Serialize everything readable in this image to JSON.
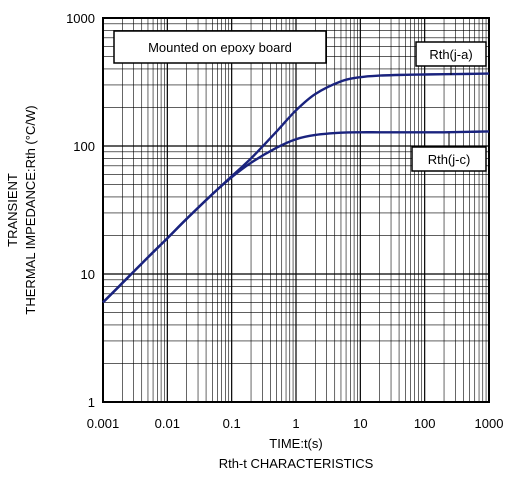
{
  "chart_data": {
    "type": "line",
    "x_scale": "log",
    "y_scale": "log",
    "xlim": [
      0.001,
      1000
    ],
    "ylim": [
      1,
      1000
    ],
    "grid": true,
    "x_ticks": [
      0.001,
      0.01,
      0.1,
      1,
      10,
      100,
      1000
    ],
    "x_tick_labels": [
      "0.001",
      "0.01",
      "0.1",
      "1",
      "10",
      "100",
      "1000"
    ],
    "y_ticks": [
      1,
      10,
      100,
      1000
    ],
    "y_tick_labels": [
      "1",
      "10",
      "100",
      "1000"
    ],
    "ylabel_line1": "TRANSIENT",
    "ylabel_line2": "THERMAL IMPEDANCE:Rth (°C/W)",
    "xlabel": "TIME:t(s)",
    "caption": "Rth-t CHARACTERISTICS",
    "condition_note": "Mounted on epoxy board",
    "series": [
      {
        "name": "Rth(j-a)",
        "color": "#1a237e",
        "x": [
          0.001,
          0.002,
          0.005,
          0.01,
          0.02,
          0.05,
          0.1,
          0.2,
          0.5,
          1,
          2,
          5,
          10,
          20,
          50,
          100,
          200,
          500,
          1000
        ],
        "y": [
          6,
          8.5,
          13.5,
          19,
          27,
          42,
          58,
          80,
          130,
          190,
          255,
          320,
          345,
          355,
          360,
          362,
          364,
          366,
          368
        ]
      },
      {
        "name": "Rth(j-c)",
        "color": "#1a237e",
        "x": [
          0.001,
          0.002,
          0.005,
          0.01,
          0.02,
          0.05,
          0.1,
          0.2,
          0.5,
          1,
          2,
          5,
          10,
          20,
          50,
          100,
          200,
          500,
          1000
        ],
        "y": [
          6,
          8.5,
          13.5,
          19,
          27,
          42,
          57,
          74,
          97,
          113,
          122,
          127,
          128,
          128,
          128,
          128,
          128,
          129,
          130
        ]
      }
    ]
  }
}
